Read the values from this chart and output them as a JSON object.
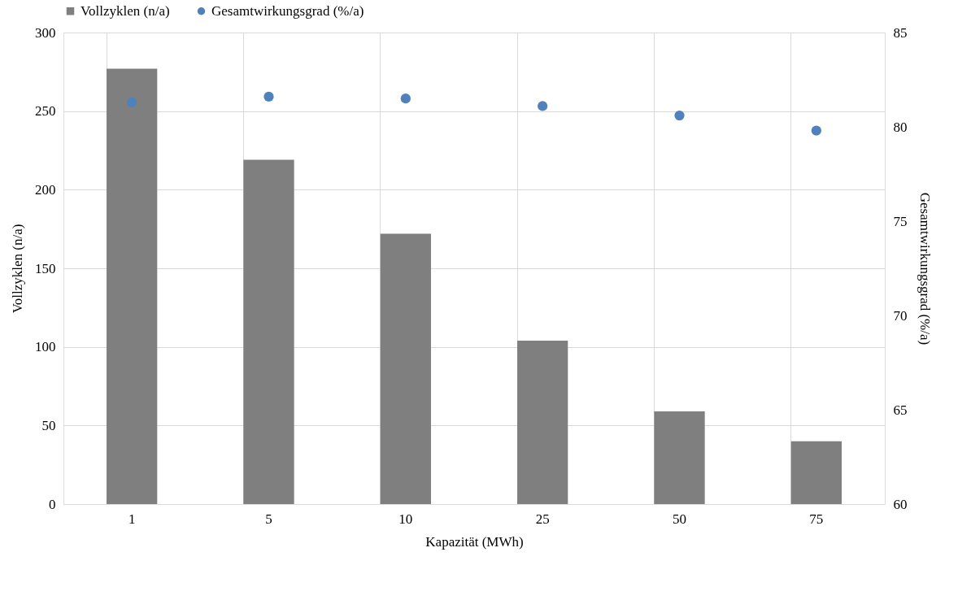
{
  "chart_data": {
    "type": "bar",
    "xlabel": "Kapazität (MWh)",
    "ylabel": "Vollzyklen (n/a)",
    "y2label": "Gesamtwirkungsgrad (%/a)",
    "categories": [
      "1",
      "5",
      "10",
      "25",
      "50",
      "75"
    ],
    "series": [
      {
        "name": "Vollzyklen (n/a)",
        "color": "#7f7f7f",
        "values": [
          277,
          219,
          172,
          104,
          59,
          40
        ]
      },
      {
        "name": "Gesamtwirkungsgrad (%/a)",
        "color": "#4f81bd",
        "type": "scatter",
        "axis": "y2",
        "marker": "circle",
        "values": [
          81.3,
          81.6,
          81.5,
          81.1,
          80.6,
          79.8
        ]
      }
    ],
    "ylim": [
      0,
      300
    ],
    "yticks": [
      0,
      50,
      100,
      150,
      200,
      250,
      300
    ],
    "y2lim": [
      60,
      85
    ],
    "y2ticks": [
      60,
      65,
      70,
      75,
      80,
      85
    ],
    "grid": true,
    "legend": "top"
  }
}
